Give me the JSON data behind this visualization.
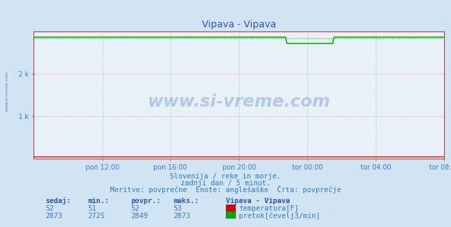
{
  "title": "Vipava - Vipava",
  "bg_color": "#d0e4f4",
  "plot_bg_color": "#e8f0f8",
  "grid_color_h": "#ffaaaa",
  "grid_color_v": "#aaddaa",
  "x_labels": [
    "pon 12:00",
    "pon 16:00",
    "pon 20:00",
    "tor 00:00",
    "tor 04:00",
    "tor 08:00"
  ],
  "x_ticks": [
    0.167,
    0.333,
    0.5,
    0.667,
    0.833,
    1.0
  ],
  "ymax": 3000,
  "ymin": 0,
  "flow_value": 2873,
  "flow_min": 2725,
  "flow_avg": 2849,
  "flow_max": 2873,
  "temp_value": 52,
  "temp_min": 51,
  "temp_avg": 52,
  "temp_max": 53,
  "temp_color": "#dd0000",
  "flow_color": "#00aa00",
  "flow_dotted_color": "#00cc00",
  "temp_line_color": "#cc0000",
  "axis_color": "#cc3333",
  "title_color": "#3355aa",
  "label_color": "#4477bb",
  "text_color": "#3377bb",
  "watermark_color": "#2255aa",
  "subtitle1": "Slovenija / reke in morje.",
  "subtitle2": "zadnji dan / 5 minut.",
  "subtitle3": "Meritve: povprečne  Enote: anglešaške  Črta: povprečje",
  "legend_title": "Vipava - Vipava",
  "leg_temp": "temperatura[F]",
  "leg_flow": "pretok[čevelj3/min]",
  "col_sedaj": "sedaj:",
  "col_min": "min.:",
  "col_povpr": "povpr.:",
  "col_maks": "maks.:"
}
